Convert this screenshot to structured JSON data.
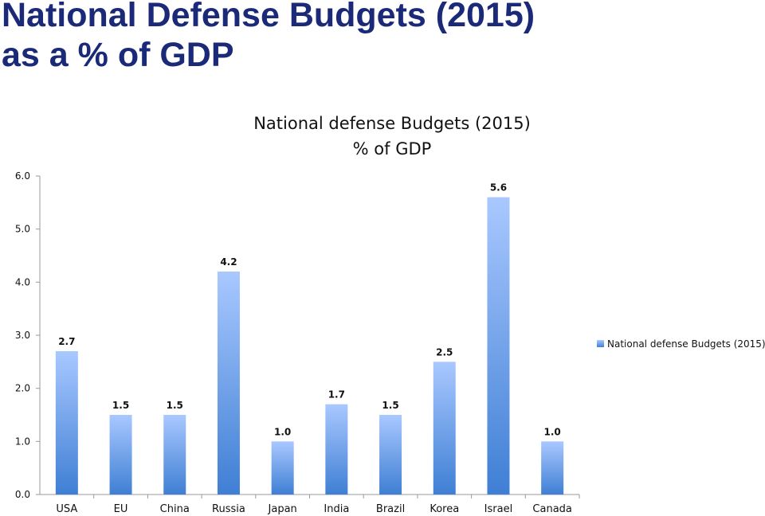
{
  "slide": {
    "title_line1": "National Defense Budgets (2015)",
    "title_line2": "as a % of GDP"
  },
  "chart_data": {
    "type": "bar",
    "title_line1": "National defense Budgets (2015)",
    "title_line2": "% of GDP",
    "categories": [
      "USA",
      "EU",
      "China",
      "Russia",
      "Japan",
      "India",
      "Brazil",
      "Korea",
      "Israel",
      "Canada"
    ],
    "series": [
      {
        "name": "National defense Budgets (2015)",
        "values": [
          2.7,
          1.5,
          1.5,
          4.2,
          1.0,
          1.7,
          1.5,
          2.5,
          5.6,
          1.0
        ],
        "value_labels": [
          "2.7",
          "1.5",
          "1.5",
          "4.2",
          "1.0",
          "1.7",
          "1.5",
          "2.5",
          "5.6",
          "1.0"
        ]
      }
    ],
    "yticks": [
      "0.0",
      "1.0",
      "2.0",
      "3.0",
      "4.0",
      "5.0",
      "6.0"
    ],
    "ylim": [
      0,
      6
    ],
    "xlabel": "",
    "ylabel": "",
    "grid": false,
    "legend_position": "right",
    "colors": {
      "bar_top": "#a9c8ff",
      "bar_bottom": "#3f7fd4",
      "axis": "#9a9a9a"
    }
  }
}
